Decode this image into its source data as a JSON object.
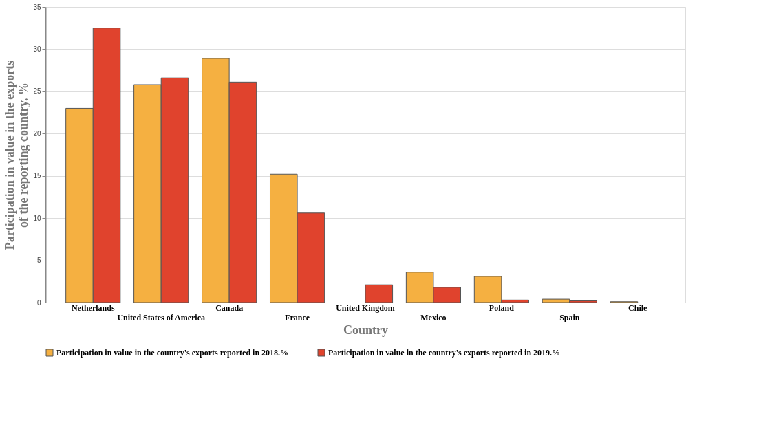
{
  "chart_data": {
    "type": "bar",
    "xlabel": "Country",
    "ylabel": "Participation in value in the exports of the reporting country. %",
    "categories": [
      "Netherlands",
      "United States of America",
      "Canada",
      "France",
      "United Kingdom",
      "Mexico",
      "Poland",
      "Spain",
      "Chile"
    ],
    "series": [
      {
        "name": "Participation in value in the country's exports reported in 2018.%",
        "color": "#f5b041",
        "values": [
          23.0,
          25.8,
          28.9,
          15.2,
          null,
          3.6,
          3.1,
          0.4,
          0.1
        ]
      },
      {
        "name": "Participation in value in the country's exports reported in 2019.%",
        "color": "#e0432d",
        "values": [
          32.5,
          26.6,
          26.1,
          10.6,
          2.1,
          1.8,
          0.3,
          0.2,
          null
        ]
      }
    ],
    "ylim": [
      0,
      35
    ],
    "yticks": [
      0,
      5,
      10,
      15,
      20,
      25,
      30,
      35
    ],
    "grid": "y",
    "legend": "bottom"
  }
}
